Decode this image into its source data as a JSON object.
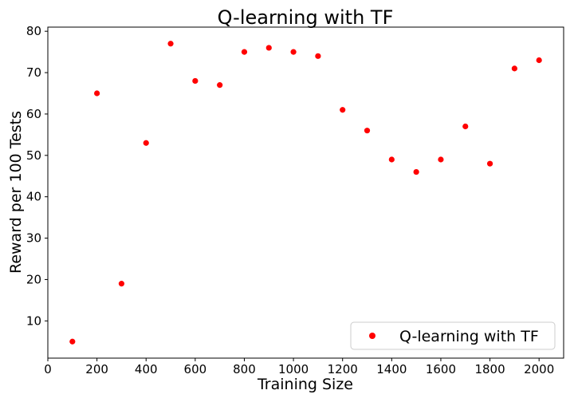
{
  "chart_data": {
    "type": "scatter",
    "title": "Q-learning with TF",
    "xlabel": "Training Size",
    "ylabel": "Reward per 100 Tests",
    "xlim": [
      0,
      2100
    ],
    "ylim": [
      1,
      81
    ],
    "xticks": [
      0,
      200,
      400,
      600,
      800,
      1000,
      1200,
      1400,
      1600,
      1800,
      2000
    ],
    "yticks": [
      10,
      20,
      30,
      40,
      50,
      60,
      70,
      80
    ],
    "grid": false,
    "legend_position": "lower-right",
    "series": [
      {
        "name": "Q-learning with TF",
        "color": "#ff0000",
        "x": [
          100,
          200,
          300,
          400,
          500,
          600,
          700,
          800,
          900,
          1000,
          1100,
          1200,
          1300,
          1400,
          1500,
          1600,
          1700,
          1800,
          1900,
          2000
        ],
        "y": [
          5,
          65,
          19,
          53,
          77,
          68,
          67,
          75,
          76,
          75,
          74,
          61,
          56,
          49,
          46,
          49,
          57,
          48,
          71,
          73
        ]
      }
    ]
  }
}
